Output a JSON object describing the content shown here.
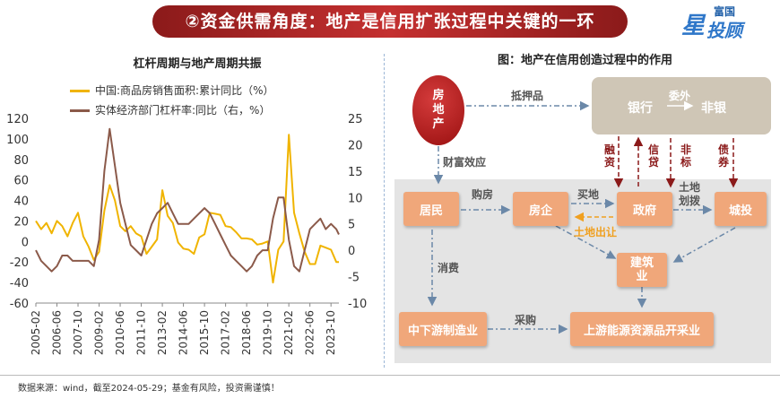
{
  "header": {
    "title": "②资金供需角度：地产是信用扩张过程中关键的一环"
  },
  "logo": {
    "top_text": "富国",
    "star_text": "星",
    "main_text": "投顾"
  },
  "left_panel": {
    "title": "杠杆周期与地产周期共振",
    "legend": [
      {
        "label": "中国:商品房销售面积:累计同比（%）",
        "color": "#f0b400"
      },
      {
        "label": "实体经济部门杠杆率:同比（右，%）",
        "color": "#8b5a4a"
      }
    ]
  },
  "chart_data": {
    "type": "line",
    "title": "杠杆周期与地产周期共振",
    "x_ticks": [
      "2005-02",
      "2006-06",
      "2007-10",
      "2009-02",
      "2010-06",
      "2011-10",
      "2013-02",
      "2014-06",
      "2015-10",
      "2017-02",
      "2018-06",
      "2019-10",
      "2021-02",
      "2022-06",
      "2023-10"
    ],
    "x_range": [
      "2005-02",
      "2024-04"
    ],
    "y_left": {
      "min": -60,
      "max": 120,
      "ticks": [
        120,
        100,
        80,
        60,
        40,
        20,
        0,
        -20,
        -40,
        -60
      ]
    },
    "y_right": {
      "min": -10,
      "max": 25,
      "ticks": [
        25,
        20,
        15,
        10,
        5,
        0,
        -5,
        -10
      ]
    },
    "series": [
      {
        "name": "中国:商品房销售面积:累计同比（%）",
        "axis": "left",
        "color": "#f0b400",
        "points": [
          [
            "2005-02",
            20
          ],
          [
            "2005-06",
            12
          ],
          [
            "2005-10",
            18
          ],
          [
            "2006-02",
            8
          ],
          [
            "2006-06",
            20
          ],
          [
            "2006-10",
            15
          ],
          [
            "2007-02",
            5
          ],
          [
            "2007-06",
            18
          ],
          [
            "2007-10",
            28
          ],
          [
            "2008-02",
            5
          ],
          [
            "2008-06",
            -5
          ],
          [
            "2008-10",
            -18
          ],
          [
            "2009-02",
            -10
          ],
          [
            "2009-06",
            30
          ],
          [
            "2009-10",
            55
          ],
          [
            "2010-02",
            40
          ],
          [
            "2010-06",
            15
          ],
          [
            "2010-10",
            10
          ],
          [
            "2011-02",
            15
          ],
          [
            "2011-06",
            8
          ],
          [
            "2011-10",
            5
          ],
          [
            "2012-02",
            -12
          ],
          [
            "2012-06",
            -5
          ],
          [
            "2012-10",
            2
          ],
          [
            "2013-02",
            50
          ],
          [
            "2013-06",
            25
          ],
          [
            "2013-10",
            18
          ],
          [
            "2014-02",
            -1
          ],
          [
            "2014-06",
            -7
          ],
          [
            "2014-10",
            -8
          ],
          [
            "2015-02",
            -12
          ],
          [
            "2015-06",
            4
          ],
          [
            "2015-10",
            7
          ],
          [
            "2016-02",
            28
          ],
          [
            "2016-06",
            27
          ],
          [
            "2016-10",
            26
          ],
          [
            "2017-02",
            15
          ],
          [
            "2017-06",
            14
          ],
          [
            "2017-10",
            9
          ],
          [
            "2018-02",
            3
          ],
          [
            "2018-06",
            3
          ],
          [
            "2018-10",
            2
          ],
          [
            "2019-02",
            -3
          ],
          [
            "2019-06",
            -2
          ],
          [
            "2019-10",
            0
          ],
          [
            "2020-02",
            -40
          ],
          [
            "2020-06",
            -8
          ],
          [
            "2020-10",
            0
          ],
          [
            "2021-02",
            104
          ],
          [
            "2021-06",
            28
          ],
          [
            "2021-10",
            8
          ],
          [
            "2022-02",
            -10
          ],
          [
            "2022-06",
            -22
          ],
          [
            "2022-10",
            -22
          ],
          [
            "2023-02",
            -4
          ],
          [
            "2023-06",
            -6
          ],
          [
            "2023-10",
            -8
          ],
          [
            "2024-02",
            -20
          ],
          [
            "2024-04",
            -20
          ]
        ]
      },
      {
        "name": "实体经济部门杠杆率:同比（右，%）",
        "axis": "right",
        "color": "#8b5a4a",
        "points": [
          [
            "2005-02",
            0
          ],
          [
            "2005-06",
            -2
          ],
          [
            "2005-10",
            -3
          ],
          [
            "2006-02",
            -4
          ],
          [
            "2006-06",
            -3
          ],
          [
            "2006-10",
            -1
          ],
          [
            "2007-02",
            -1
          ],
          [
            "2007-06",
            -2
          ],
          [
            "2007-10",
            -2
          ],
          [
            "2008-02",
            -2
          ],
          [
            "2008-06",
            -2
          ],
          [
            "2008-10",
            -3
          ],
          [
            "2009-02",
            2
          ],
          [
            "2009-06",
            15
          ],
          [
            "2009-10",
            23
          ],
          [
            "2010-02",
            16
          ],
          [
            "2010-06",
            9
          ],
          [
            "2010-10",
            5
          ],
          [
            "2011-02",
            1
          ],
          [
            "2011-06",
            0
          ],
          [
            "2011-10",
            -1
          ],
          [
            "2012-02",
            2
          ],
          [
            "2012-06",
            5
          ],
          [
            "2012-10",
            7
          ],
          [
            "2013-02",
            8
          ],
          [
            "2013-06",
            9
          ],
          [
            "2013-10",
            7
          ],
          [
            "2014-02",
            5
          ],
          [
            "2014-06",
            5
          ],
          [
            "2014-10",
            5
          ],
          [
            "2015-02",
            6
          ],
          [
            "2015-06",
            7
          ],
          [
            "2015-10",
            8
          ],
          [
            "2016-02",
            7
          ],
          [
            "2016-06",
            5
          ],
          [
            "2016-10",
            3
          ],
          [
            "2017-02",
            1
          ],
          [
            "2017-06",
            -1
          ],
          [
            "2017-10",
            -2
          ],
          [
            "2018-02",
            -3
          ],
          [
            "2018-06",
            -4
          ],
          [
            "2018-10",
            -3
          ],
          [
            "2019-02",
            -1
          ],
          [
            "2019-06",
            0
          ],
          [
            "2019-10",
            0
          ],
          [
            "2020-02",
            6
          ],
          [
            "2020-06",
            10
          ],
          [
            "2020-10",
            10
          ],
          [
            "2021-02",
            2
          ],
          [
            "2021-06",
            -3
          ],
          [
            "2021-10",
            -4
          ],
          [
            "2022-02",
            0
          ],
          [
            "2022-06",
            4
          ],
          [
            "2022-10",
            5
          ],
          [
            "2023-02",
            6
          ],
          [
            "2023-06",
            4
          ],
          [
            "2023-10",
            5
          ],
          [
            "2024-02",
            4
          ],
          [
            "2024-04",
            3
          ]
        ]
      }
    ]
  },
  "right_panel": {
    "title": "图：地产在信用创造过程中的作用",
    "nodes": {
      "real_estate": "房地产",
      "bank": "银行",
      "bank_arrow": "委外",
      "nonbank": "非银",
      "residents": "居民",
      "developers": "房企",
      "government": "政府",
      "chengtou": "城投",
      "construction": "建筑业",
      "manufacturing": "中下游制造业",
      "upstream": "上游能源资源品开采业"
    },
    "labels": {
      "collateral": "抵押品",
      "wealth_effect": "财富效应",
      "buy_house": "购房",
      "buy_land": "买地",
      "land_sale": "土地出让",
      "land_transfer": "土地划拨",
      "consume": "消费",
      "purchase": "采购",
      "financing": "融资",
      "credit": "信贷",
      "nonstandard": "非标",
      "bonds": "债券"
    }
  },
  "source": "数据来源：wind，截至2024-05-29；基金有风险，投资需谨慎！"
}
